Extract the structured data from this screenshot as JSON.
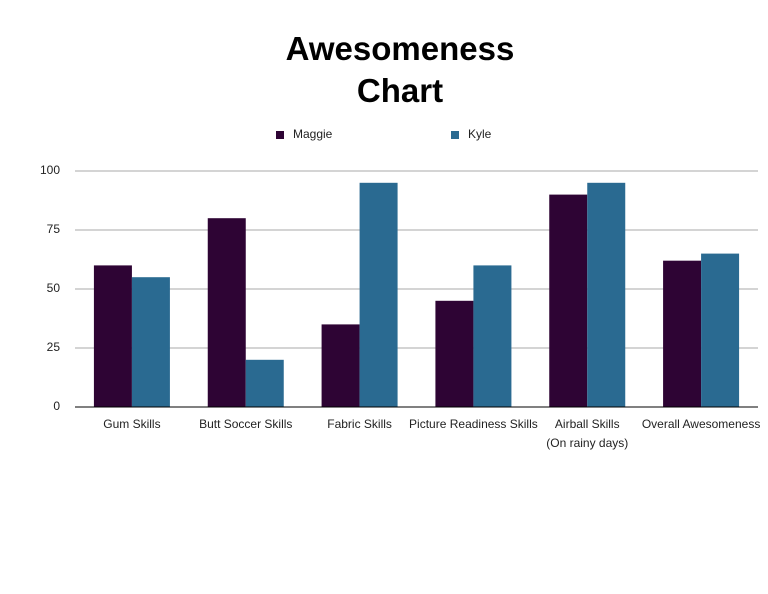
{
  "chart_data": {
    "type": "bar",
    "title": "Awesomeness Chart",
    "categories": [
      "Gum Skills",
      "Butt Soccer Skills",
      "Fabric Skills",
      "Picture Readiness Skills",
      "Airball Skills\n(On rainy days)",
      "Overall Awesomeness"
    ],
    "series": [
      {
        "name": "Maggie",
        "color": "#2e0434",
        "values": [
          60,
          80,
          35,
          45,
          90,
          62
        ]
      },
      {
        "name": "Kyle",
        "color": "#2a6a91",
        "values": [
          55,
          20,
          95,
          60,
          95,
          65
        ]
      }
    ],
    "ylim": [
      0,
      100
    ],
    "yticks": [
      0,
      25,
      50,
      75,
      100
    ],
    "grid": true,
    "legend": "top"
  }
}
